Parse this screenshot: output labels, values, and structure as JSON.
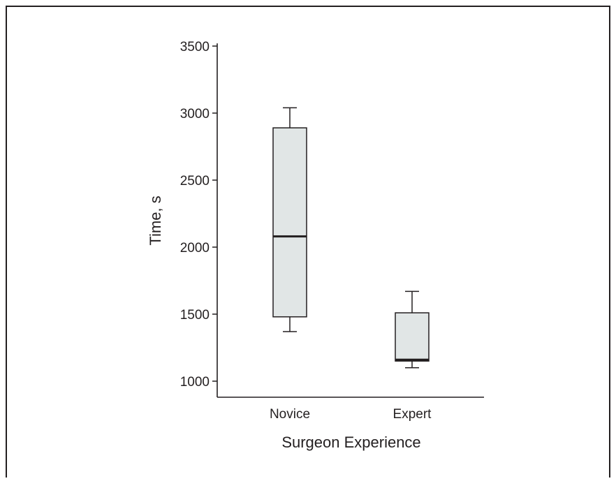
{
  "chart_data": {
    "type": "boxplot",
    "title": "",
    "xlabel": "Surgeon Experience",
    "ylabel": "Time, s",
    "ylim": [
      940,
      3520
    ],
    "yticks": [
      1000,
      1500,
      2000,
      2500,
      3000,
      3500
    ],
    "categories": [
      "Novice",
      "Expert"
    ],
    "boxes": [
      {
        "category": "Novice",
        "whisker_low": 1370,
        "q1": 1480,
        "median": 2080,
        "q3": 2890,
        "whisker_high": 3040
      },
      {
        "category": "Expert",
        "whisker_low": 1100,
        "q1": 1150,
        "median": 1160,
        "q3": 1510,
        "whisker_high": 1670
      }
    ],
    "grid": false,
    "box_fill": "#e1e6e6",
    "line_color": "#231f20",
    "frame_color": "#231f20"
  }
}
